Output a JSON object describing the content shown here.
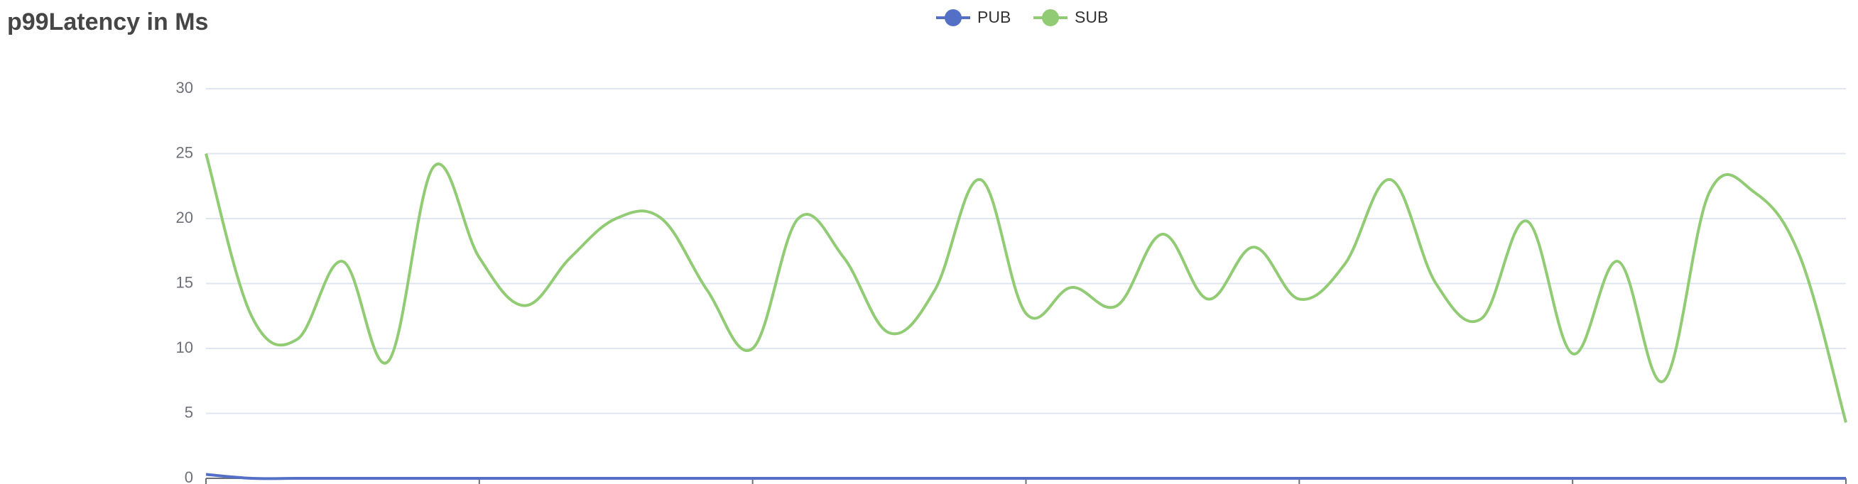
{
  "chart_data": {
    "type": "line",
    "title": "p99Latency in Ms",
    "categories": [
      null,
      null,
      null,
      null,
      null,
      null,
      null,
      null,
      null,
      null,
      null,
      null,
      null,
      null,
      null,
      null,
      null,
      null,
      null,
      null,
      null,
      null,
      null,
      null,
      null,
      null,
      null,
      null,
      null,
      null,
      null,
      null,
      null,
      null,
      null,
      null,
      null
    ],
    "series": [
      {
        "name": "PUB",
        "color": "#5470c6",
        "values": [
          0.3,
          0,
          0,
          0,
          0,
          0,
          0,
          0,
          0,
          0,
          0,
          0,
          0,
          0,
          0,
          0,
          0,
          0,
          0,
          0,
          0,
          0,
          0,
          0,
          0,
          0,
          0,
          0,
          0,
          0,
          0,
          0,
          0,
          0,
          0,
          0,
          0
        ]
      },
      {
        "name": "SUB",
        "color": "#91cc75",
        "values": [
          25,
          12.5,
          10.7,
          16.7,
          9,
          24,
          17,
          13.3,
          17,
          20,
          20,
          14.5,
          10,
          20,
          17,
          11.2,
          14.5,
          23,
          12.7,
          14.7,
          13.3,
          18.8,
          13.8,
          17.8,
          13.8,
          16.5,
          23,
          15,
          12.3,
          19.8,
          9.6,
          16.7,
          7.5,
          22,
          22,
          17,
          4.3
        ]
      }
    ],
    "ylim": [
      0,
      30
    ],
    "yticks": [
      0,
      5,
      10,
      15,
      20,
      25,
      30
    ],
    "grid": true,
    "legend": "top"
  }
}
